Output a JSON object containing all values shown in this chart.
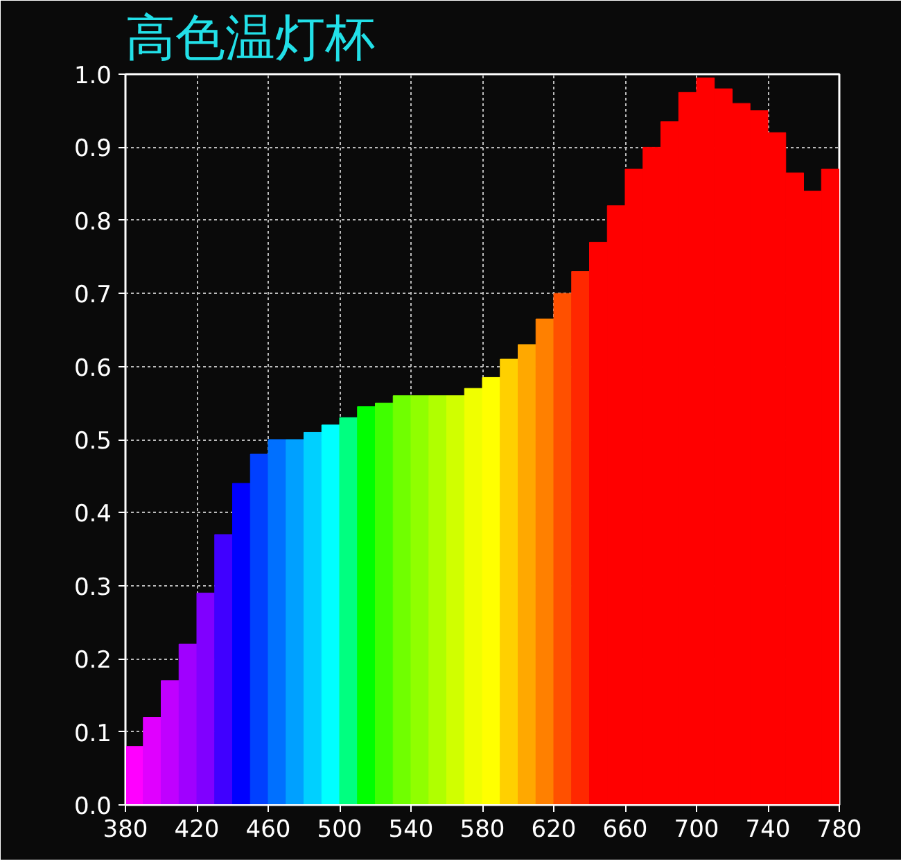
{
  "chart_data": {
    "type": "histogram",
    "title": "高色温灯杯",
    "bins": [
      380,
      390,
      400,
      410,
      420,
      430,
      440,
      450,
      460,
      470,
      480,
      490,
      500,
      510,
      520,
      530,
      540,
      550,
      560,
      570,
      580,
      590,
      600,
      610,
      620,
      630,
      640,
      650,
      660,
      670,
      680,
      690,
      700,
      710,
      720,
      730,
      740,
      750,
      760,
      770,
      780
    ],
    "values": [
      0.08,
      0.12,
      0.17,
      0.22,
      0.29,
      0.37,
      0.44,
      0.48,
      0.5,
      0.5,
      0.51,
      0.52,
      0.53,
      0.545,
      0.55,
      0.56,
      0.56,
      0.56,
      0.56,
      0.57,
      0.585,
      0.61,
      0.63,
      0.665,
      0.7,
      0.73,
      0.77,
      0.82,
      0.87,
      0.9,
      0.935,
      0.975,
      0.995,
      0.98,
      0.96,
      0.95,
      0.92,
      0.865,
      0.84,
      0.87
    ],
    "colors": [
      "#ff00ff",
      "#e000ff",
      "#c000ff",
      "#a000ff",
      "#8000ff",
      "#4000ff",
      "#0000ff",
      "#0040ff",
      "#0070ff",
      "#00a0ff",
      "#00d0ff",
      "#00ffff",
      "#00ff80",
      "#00ff00",
      "#40ff00",
      "#70ff00",
      "#90ff00",
      "#b0ff00",
      "#d0ff00",
      "#f0ff00",
      "#ffff00",
      "#ffd000",
      "#ffa800",
      "#ff8000",
      "#ff5000",
      "#ff2800",
      "#ff0000",
      "#ff0000",
      "#ff0000",
      "#ff0000",
      "#ff0000",
      "#ff0000",
      "#ff0000",
      "#ff0000",
      "#ff0000",
      "#ff0000",
      "#ff0000",
      "#ff0000",
      "#ff0000",
      "#ff0000"
    ],
    "xlim": [
      380,
      780
    ],
    "xticks": [
      380,
      420,
      460,
      500,
      540,
      580,
      620,
      660,
      700,
      740,
      780
    ],
    "ylim": [
      0,
      1
    ],
    "yticks": [
      {
        "value": 0,
        "label": "0.0"
      },
      0.1,
      0.2,
      0.3,
      0.4,
      0.5,
      0.6,
      0.7,
      0.8,
      0.9,
      {
        "value": 1,
        "label": "1.0"
      }
    ],
    "grid": true
  }
}
